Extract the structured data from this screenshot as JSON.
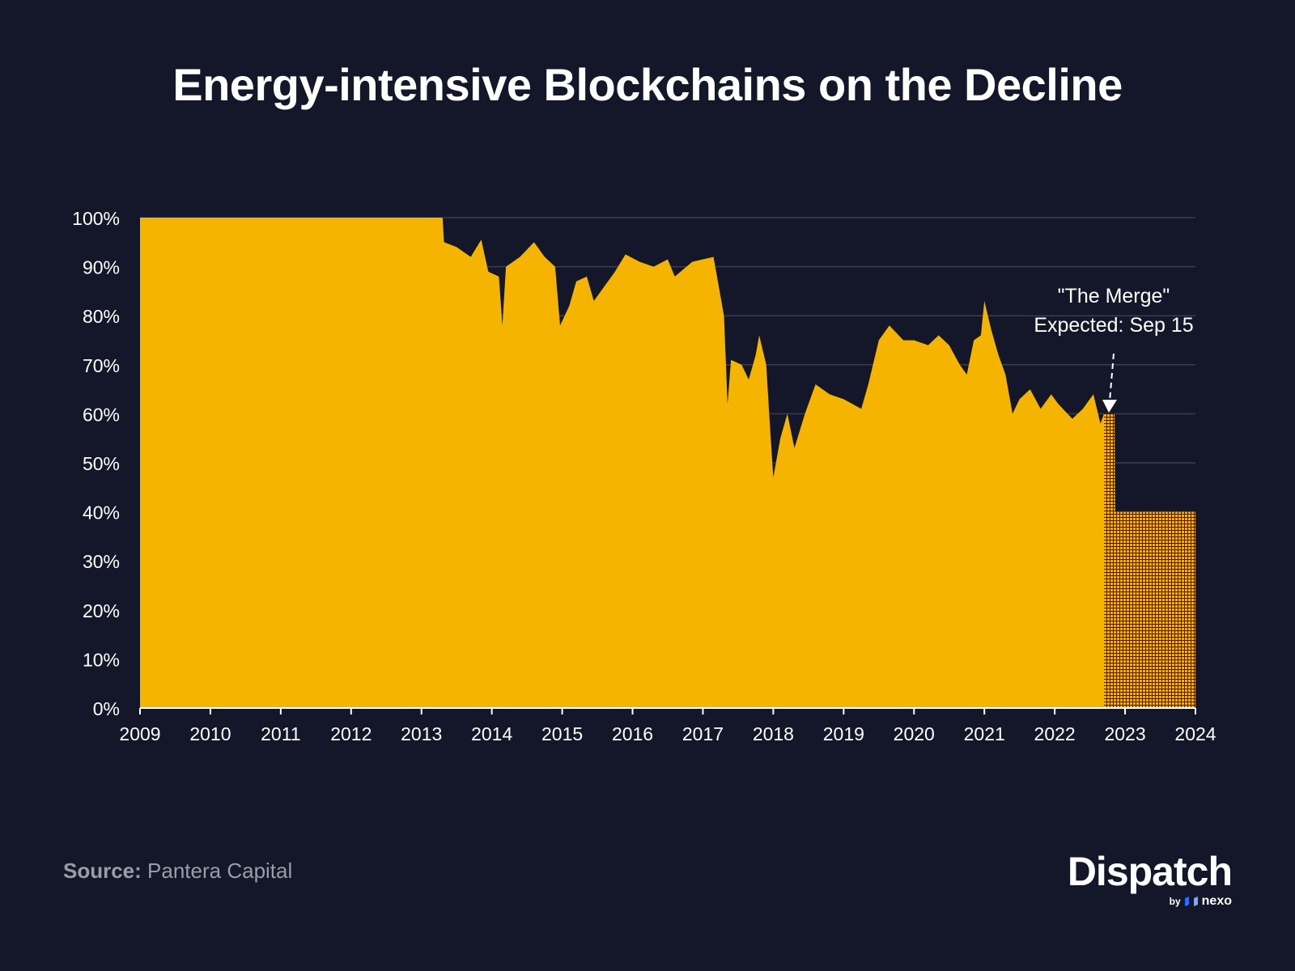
{
  "chart_data": {
    "type": "area",
    "title": "Energy-intensive Blockchains on the Decline",
    "xlabel": "",
    "ylabel": "",
    "xlim": [
      2009,
      2024
    ],
    "ylim": [
      0,
      100
    ],
    "x_ticks": [
      "2009",
      "2010",
      "2011",
      "2012",
      "2013",
      "2014",
      "2015",
      "2016",
      "2017",
      "2018",
      "2019",
      "2020",
      "2021",
      "2022",
      "2023",
      "2024"
    ],
    "y_ticks": [
      "0%",
      "10%",
      "20%",
      "30%",
      "40%",
      "50%",
      "60%",
      "70%",
      "80%",
      "90%",
      "100%"
    ],
    "grid": true,
    "series": [
      {
        "name": "",
        "color": "#f4b400",
        "points": [
          [
            2009.0,
            100
          ],
          [
            2013.3,
            100
          ],
          [
            2013.32,
            95
          ],
          [
            2013.5,
            94
          ],
          [
            2013.7,
            92
          ],
          [
            2013.85,
            95.5
          ],
          [
            2013.95,
            89
          ],
          [
            2014.1,
            88
          ],
          [
            2014.15,
            78
          ],
          [
            2014.2,
            90
          ],
          [
            2014.4,
            92
          ],
          [
            2014.6,
            95
          ],
          [
            2014.75,
            92
          ],
          [
            2014.9,
            90
          ],
          [
            2014.97,
            78
          ],
          [
            2015.1,
            82
          ],
          [
            2015.2,
            87
          ],
          [
            2015.35,
            88
          ],
          [
            2015.45,
            83
          ],
          [
            2015.6,
            86
          ],
          [
            2015.75,
            89
          ],
          [
            2015.9,
            92.5
          ],
          [
            2016.1,
            91
          ],
          [
            2016.3,
            90
          ],
          [
            2016.5,
            91.5
          ],
          [
            2016.6,
            88
          ],
          [
            2016.85,
            91
          ],
          [
            2017.0,
            91.5
          ],
          [
            2017.15,
            92
          ],
          [
            2017.2,
            88
          ],
          [
            2017.3,
            80
          ],
          [
            2017.35,
            62
          ],
          [
            2017.4,
            71
          ],
          [
            2017.55,
            70
          ],
          [
            2017.65,
            67
          ],
          [
            2017.75,
            72
          ],
          [
            2017.8,
            76
          ],
          [
            2017.9,
            70
          ],
          [
            2017.95,
            58
          ],
          [
            2018.0,
            47
          ],
          [
            2018.1,
            55
          ],
          [
            2018.2,
            60
          ],
          [
            2018.3,
            53
          ],
          [
            2018.45,
            60
          ],
          [
            2018.6,
            66
          ],
          [
            2018.8,
            64
          ],
          [
            2019.0,
            63
          ],
          [
            2019.25,
            61
          ],
          [
            2019.35,
            66
          ],
          [
            2019.5,
            75
          ],
          [
            2019.65,
            78
          ],
          [
            2019.85,
            75
          ],
          [
            2020.0,
            75
          ],
          [
            2020.2,
            74
          ],
          [
            2020.35,
            76
          ],
          [
            2020.5,
            74
          ],
          [
            2020.65,
            70
          ],
          [
            2020.75,
            68
          ],
          [
            2020.85,
            75
          ],
          [
            2020.95,
            76
          ],
          [
            2021.0,
            83
          ],
          [
            2021.1,
            77
          ],
          [
            2021.2,
            72
          ],
          [
            2021.3,
            68
          ],
          [
            2021.4,
            60
          ],
          [
            2021.5,
            63
          ],
          [
            2021.65,
            65
          ],
          [
            2021.8,
            61
          ],
          [
            2021.95,
            64
          ],
          [
            2022.05,
            62
          ],
          [
            2022.25,
            59
          ],
          [
            2022.4,
            61
          ],
          [
            2022.55,
            64
          ],
          [
            2022.65,
            58
          ],
          [
            2022.7,
            60
          ]
        ]
      },
      {
        "name": "",
        "color": "#f4b400",
        "pattern": "dotted",
        "points": [
          [
            2022.7,
            60
          ],
          [
            2022.85,
            60
          ],
          [
            2022.86,
            40
          ],
          [
            2024.0,
            40
          ]
        ]
      }
    ],
    "annotations": [
      {
        "text_line1": "\"The Merge\"",
        "text_line2": "Expected:  Sep 15",
        "x": 2022.78,
        "y": 60
      }
    ]
  },
  "footer": {
    "source_label": "Source:",
    "source_value": "Pantera Capital"
  },
  "logo": {
    "word": "Dispatch",
    "by": "by",
    "brand": "nexo"
  }
}
